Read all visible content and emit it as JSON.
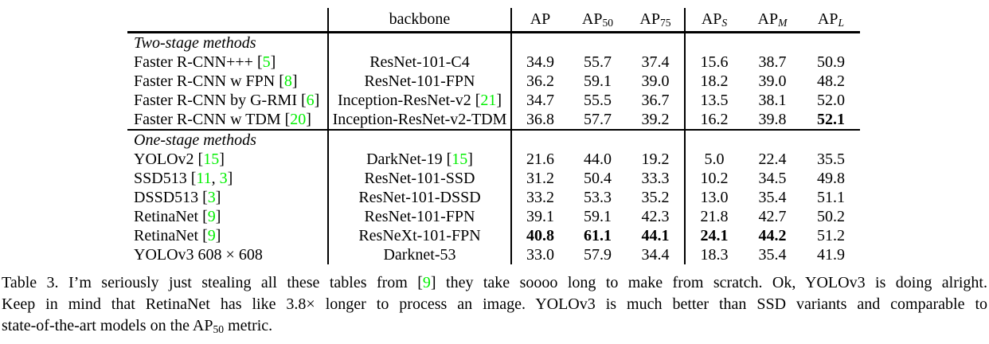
{
  "colors": {
    "citation_green": "#00ef00",
    "text": "#000000",
    "background": "#ffffff"
  },
  "table": {
    "header": {
      "method": "",
      "backbone": "backbone",
      "metrics": [
        {
          "base": "AP",
          "sub": ""
        },
        {
          "base": "AP",
          "sub": "50"
        },
        {
          "base": "AP",
          "sub": "75"
        },
        {
          "base": "AP",
          "sub": "S"
        },
        {
          "base": "AP",
          "sub": "M"
        },
        {
          "base": "AP",
          "sub": "L"
        }
      ]
    },
    "sections": [
      {
        "label": "Two-stage methods"
      },
      {
        "label": "One-stage methods"
      }
    ],
    "rows": [
      {
        "method": {
          "pre": "Faster R-CNN+++ [",
          "ref": "5",
          "post": "]"
        },
        "backbone": {
          "pre": "ResNet-101-C4"
        },
        "values": [
          "34.9",
          "55.7",
          "37.4",
          "15.6",
          "38.7",
          "50.9"
        ]
      },
      {
        "method": {
          "pre": "Faster R-CNN w FPN [",
          "ref": "8",
          "post": "]"
        },
        "backbone": {
          "pre": "ResNet-101-FPN"
        },
        "values": [
          "36.2",
          "59.1",
          "39.0",
          "18.2",
          "39.0",
          "48.2"
        ]
      },
      {
        "method": {
          "pre": "Faster R-CNN by G-RMI [",
          "ref": "6",
          "post": "]"
        },
        "backbone": {
          "pre": "Inception-ResNet-v2 [",
          "ref": "21",
          "post": "]"
        },
        "values": [
          "34.7",
          "55.5",
          "36.7",
          "13.5",
          "38.1",
          "52.0"
        ]
      },
      {
        "method": {
          "pre": "Faster R-CNN w TDM [",
          "ref": "20",
          "post": "]"
        },
        "backbone": {
          "pre": "Inception-ResNet-v2-TDM"
        },
        "values": [
          "36.8",
          "57.7",
          "39.2",
          "16.2",
          "39.8",
          "52.1"
        ]
      },
      {
        "method": {
          "pre": "YOLOv2 [",
          "ref": "15",
          "post": "]"
        },
        "backbone": {
          "pre": "DarkNet-19 [",
          "ref": "15",
          "post": "]"
        },
        "values": [
          "21.6",
          "44.0",
          "19.2",
          "5.0",
          "22.4",
          "35.5"
        ]
      },
      {
        "method": {
          "pre": "SSD513 [",
          "ref": "11",
          "mid": ", ",
          "ref2": "3",
          "post": "]"
        },
        "backbone": {
          "pre": "ResNet-101-SSD"
        },
        "values": [
          "31.2",
          "50.4",
          "33.3",
          "10.2",
          "34.5",
          "49.8"
        ]
      },
      {
        "method": {
          "pre": "DSSD513 [",
          "ref": "3",
          "post": "]"
        },
        "backbone": {
          "pre": "ResNet-101-DSSD"
        },
        "values": [
          "33.2",
          "53.3",
          "35.2",
          "13.0",
          "35.4",
          "51.1"
        ]
      },
      {
        "method": {
          "pre": "RetinaNet [",
          "ref": "9",
          "post": "]"
        },
        "backbone": {
          "pre": "ResNet-101-FPN"
        },
        "values": [
          "39.1",
          "59.1",
          "42.3",
          "21.8",
          "42.7",
          "50.2"
        ]
      },
      {
        "method": {
          "pre": "RetinaNet [",
          "ref": "9",
          "post": "]"
        },
        "backbone": {
          "pre": "ResNeXt-101-FPN"
        },
        "values": [
          "40.8",
          "61.1",
          "44.1",
          "24.1",
          "44.2",
          "51.2"
        ]
      },
      {
        "method": {
          "pre": "YOLOv3 608 × 608"
        },
        "backbone": {
          "pre": "Darknet-53"
        },
        "values": [
          "33.0",
          "57.9",
          "34.4",
          "18.3",
          "35.4",
          "41.9"
        ]
      }
    ]
  },
  "caption": {
    "line1": {
      "pre": "Table 3. I’m seriously just stealing all these tables from [",
      "ref": "9",
      "post": "] they take soooo long to make from scratch.  Ok, YOLOv3 is doing alright."
    },
    "line2": "Keep in mind that RetinaNet has like 3.8× longer to process an image.  YOLOv3 is much better than SSD variants and comparable to",
    "line3": {
      "pre": "state-of-the-art models on the AP",
      "sub": "50",
      "post": " metric."
    }
  }
}
